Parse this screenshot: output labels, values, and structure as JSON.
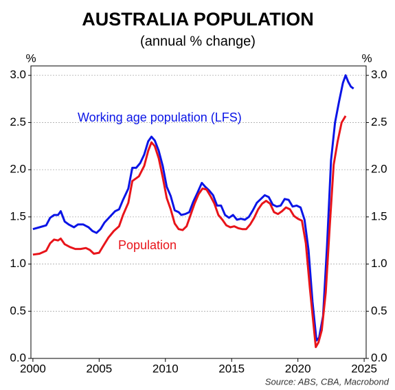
{
  "chart_data": {
    "type": "line",
    "title": "AUSTRALIA POPULATION",
    "subtitle": "(annual % change)",
    "ylabel": "%",
    "source": "Source: ABS, CBA, Macrobond",
    "xlim": [
      1999.85,
      2025.15
    ],
    "xticks": [
      2000,
      2005,
      2010,
      2015,
      2020,
      2025
    ],
    "ylim": [
      0,
      3.1
    ],
    "yticks": [
      {
        "value": 0,
        "label": "0.0"
      },
      {
        "value": 0.5,
        "label": "0.5"
      },
      {
        "value": 1,
        "label": "1.0"
      },
      {
        "value": 1.5,
        "label": "1.5"
      },
      {
        "value": 2,
        "label": "2.0"
      },
      {
        "value": 2.5,
        "label": "2.5"
      },
      {
        "value": 3,
        "label": "3.0"
      }
    ],
    "grid": true,
    "series": [
      {
        "name": "Working age population (LFS)",
        "color": "#0a14e6",
        "x": [
          2000.0,
          2000.5,
          2001.0,
          2001.3,
          2001.6,
          2001.9,
          2002.1,
          2002.4,
          2002.7,
          2003.1,
          2003.4,
          2003.8,
          2004.2,
          2004.5,
          2004.8,
          2005.1,
          2005.4,
          2005.8,
          2006.2,
          2006.5,
          2006.8,
          2007.2,
          2007.5,
          2007.8,
          2008.1,
          2008.4,
          2008.7,
          2008.95,
          2009.2,
          2009.5,
          2009.8,
          2010.1,
          2010.4,
          2010.7,
          2011.0,
          2011.2,
          2011.5,
          2011.8,
          2012.1,
          2012.4,
          2012.75,
          2013.0,
          2013.3,
          2013.6,
          2013.9,
          2014.2,
          2014.5,
          2014.8,
          2015.1,
          2015.4,
          2015.7,
          2016.0,
          2016.3,
          2016.6,
          2016.9,
          2017.2,
          2017.5,
          2017.8,
          2018.1,
          2018.4,
          2018.7,
          2019.0,
          2019.3,
          2019.6,
          2019.9,
          2020.2,
          2020.5,
          2020.8,
          2021.1,
          2021.4,
          2021.6,
          2021.9,
          2022.2,
          2022.5,
          2022.8,
          2023.1,
          2023.4,
          2023.6,
          2023.8,
          2024.0,
          2024.2
        ],
        "values": [
          1.37,
          1.39,
          1.41,
          1.49,
          1.52,
          1.52,
          1.56,
          1.45,
          1.42,
          1.39,
          1.42,
          1.42,
          1.39,
          1.35,
          1.33,
          1.37,
          1.44,
          1.5,
          1.56,
          1.58,
          1.68,
          1.8,
          2.02,
          2.02,
          2.07,
          2.16,
          2.3,
          2.35,
          2.31,
          2.2,
          2.04,
          1.82,
          1.72,
          1.57,
          1.55,
          1.52,
          1.53,
          1.55,
          1.66,
          1.75,
          1.86,
          1.82,
          1.78,
          1.73,
          1.62,
          1.62,
          1.52,
          1.49,
          1.52,
          1.47,
          1.48,
          1.47,
          1.5,
          1.57,
          1.65,
          1.69,
          1.73,
          1.71,
          1.63,
          1.61,
          1.62,
          1.69,
          1.68,
          1.61,
          1.62,
          1.6,
          1.47,
          1.15,
          0.6,
          0.19,
          0.22,
          0.45,
          1.2,
          2.1,
          2.5,
          2.72,
          2.92,
          3.0,
          2.93,
          2.88,
          2.86
        ]
      },
      {
        "name": "Population",
        "color": "#e8141a",
        "x": [
          2000.0,
          2000.5,
          2001.0,
          2001.3,
          2001.6,
          2001.9,
          2002.1,
          2002.4,
          2002.8,
          2003.2,
          2003.6,
          2004.0,
          2004.3,
          2004.6,
          2005.0,
          2005.3,
          2005.7,
          2006.1,
          2006.5,
          2006.8,
          2007.2,
          2007.5,
          2008.0,
          2008.4,
          2008.7,
          2008.95,
          2009.2,
          2009.5,
          2009.8,
          2010.1,
          2010.4,
          2010.7,
          2011.0,
          2011.3,
          2011.6,
          2011.9,
          2012.2,
          2012.5,
          2012.8,
          2013.1,
          2013.4,
          2013.7,
          2014.0,
          2014.3,
          2014.6,
          2014.9,
          2015.2,
          2015.5,
          2015.8,
          2016.1,
          2016.4,
          2016.7,
          2017.0,
          2017.3,
          2017.6,
          2017.9,
          2018.2,
          2018.5,
          2018.8,
          2019.1,
          2019.4,
          2019.7,
          2020.0,
          2020.3,
          2020.6,
          2020.9,
          2021.15,
          2021.35,
          2021.55,
          2021.8,
          2022.1,
          2022.4,
          2022.7,
          2023.0,
          2023.3,
          2023.6
        ],
        "values": [
          1.1,
          1.11,
          1.14,
          1.22,
          1.26,
          1.25,
          1.27,
          1.21,
          1.18,
          1.16,
          1.16,
          1.17,
          1.15,
          1.11,
          1.12,
          1.19,
          1.28,
          1.35,
          1.4,
          1.52,
          1.65,
          1.88,
          1.93,
          2.04,
          2.2,
          2.29,
          2.25,
          2.12,
          1.92,
          1.7,
          1.58,
          1.43,
          1.37,
          1.36,
          1.4,
          1.52,
          1.64,
          1.74,
          1.8,
          1.79,
          1.72,
          1.64,
          1.52,
          1.47,
          1.41,
          1.39,
          1.4,
          1.38,
          1.37,
          1.37,
          1.42,
          1.49,
          1.58,
          1.64,
          1.67,
          1.64,
          1.55,
          1.53,
          1.56,
          1.6,
          1.58,
          1.51,
          1.48,
          1.46,
          1.22,
          0.75,
          0.4,
          0.12,
          0.17,
          0.3,
          0.7,
          1.4,
          2.05,
          2.3,
          2.5,
          2.57
        ]
      }
    ]
  }
}
